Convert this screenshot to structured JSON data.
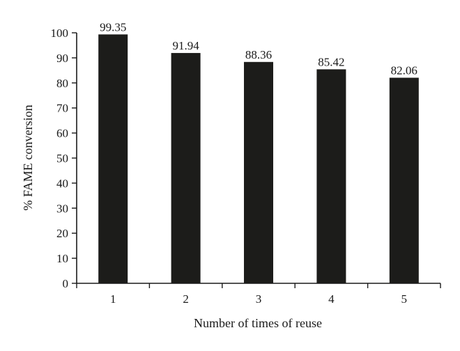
{
  "chart_data": {
    "type": "bar",
    "categories": [
      "1",
      "2",
      "3",
      "4",
      "5"
    ],
    "values": [
      99.35,
      91.94,
      88.36,
      85.42,
      82.06
    ],
    "data_labels": [
      "99.35",
      "91.94",
      "88.36",
      "85.42",
      "82.06"
    ],
    "title": "",
    "xlabel": "Number of times of reuse",
    "ylabel": "% FAME conversion",
    "ylim": [
      0,
      100
    ],
    "yticks": [
      0,
      10,
      20,
      30,
      40,
      50,
      60,
      70,
      80,
      90,
      100
    ],
    "grid": false,
    "legend": "none",
    "bar_color": "#1c1c1a"
  }
}
